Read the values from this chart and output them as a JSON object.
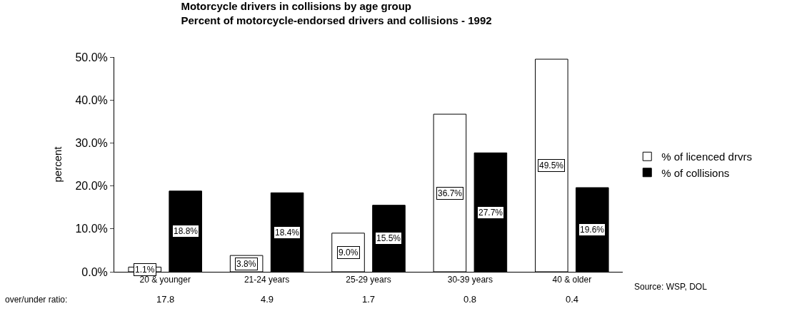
{
  "chart_data": {
    "type": "bar",
    "title": "Motorcycle drivers in collisions by age group",
    "subtitle": "Percent of motorcycle-endorsed drivers and collisions - 1992",
    "ylabel": "percent",
    "categories": [
      "20 & younger",
      "21-24 years",
      "25-29 years",
      "30-39 years",
      "40 & older"
    ],
    "series": [
      {
        "name": "% of licenced drvrs",
        "color": "#ffffff",
        "values": [
          1.1,
          3.8,
          9.0,
          36.7,
          49.5
        ],
        "value_labels": [
          "1.1%",
          "3.8%",
          "9.0%",
          "36.7%",
          "49.5%"
        ]
      },
      {
        "name": "% of collisions",
        "color": "#000000",
        "values": [
          18.8,
          18.4,
          15.5,
          27.7,
          19.6
        ],
        "value_labels": [
          "18.8%",
          "18.4%",
          "15.5%",
          "27.7%",
          "19.6%"
        ]
      }
    ],
    "ylim": [
      0,
      50
    ],
    "yticks": [
      {
        "value": 0,
        "label": "0.0%"
      },
      {
        "value": 10,
        "label": "10.0%"
      },
      {
        "value": 20,
        "label": "20.0%"
      },
      {
        "value": 30,
        "label": "30.0%"
      },
      {
        "value": 40,
        "label": "40.0%"
      },
      {
        "value": 50,
        "label": "50.0%"
      }
    ],
    "legend": "right",
    "annotations": [
      "over/under ratio:",
      "17.8",
      "4.9",
      "1.7",
      "0.8",
      "0.4",
      "Source: WSP, DOL"
    ]
  }
}
